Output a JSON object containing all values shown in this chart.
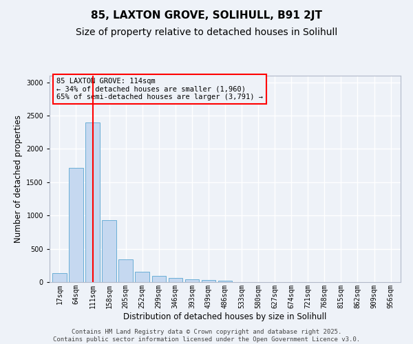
{
  "title1": "85, LAXTON GROVE, SOLIHULL, B91 2JT",
  "title2": "Size of property relative to detached houses in Solihull",
  "xlabel": "Distribution of detached houses by size in Solihull",
  "ylabel": "Number of detached properties",
  "categories": [
    "17sqm",
    "64sqm",
    "111sqm",
    "158sqm",
    "205sqm",
    "252sqm",
    "299sqm",
    "346sqm",
    "393sqm",
    "439sqm",
    "486sqm",
    "533sqm",
    "580sqm",
    "627sqm",
    "674sqm",
    "721sqm",
    "768sqm",
    "815sqm",
    "862sqm",
    "909sqm",
    "956sqm"
  ],
  "values": [
    130,
    1720,
    2400,
    930,
    340,
    150,
    90,
    60,
    45,
    35,
    25,
    0,
    0,
    0,
    0,
    0,
    0,
    0,
    0,
    0,
    0
  ],
  "bar_color": "#c5d8f0",
  "bar_edge_color": "#6aaed6",
  "vline_x": 2,
  "vline_color": "red",
  "annotation_title": "85 LAXTON GROVE: 114sqm",
  "annotation_line2": "← 34% of detached houses are smaller (1,960)",
  "annotation_line3": "65% of semi-detached houses are larger (3,791) →",
  "annotation_box_color": "red",
  "ylim": [
    0,
    3100
  ],
  "yticks": [
    0,
    500,
    1000,
    1500,
    2000,
    2500,
    3000
  ],
  "background_color": "#eef2f8",
  "grid_color": "#ffffff",
  "footer1": "Contains HM Land Registry data © Crown copyright and database right 2025.",
  "footer2": "Contains public sector information licensed under the Open Government Licence v3.0.",
  "title_fontsize": 11,
  "subtitle_fontsize": 10,
  "tick_fontsize": 7,
  "label_fontsize": 8.5,
  "ann_fontsize": 7.5,
  "footer_fontsize": 6.5
}
